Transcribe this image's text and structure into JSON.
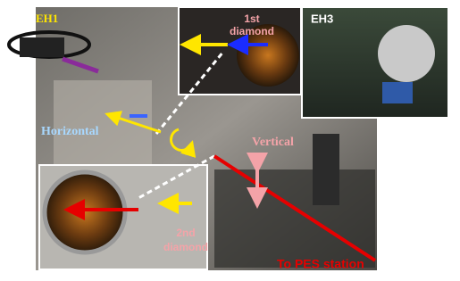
{
  "labels": {
    "eh1": "EH1",
    "first_diamond": [
      "1st",
      "diamond"
    ],
    "eh3": "EH3",
    "horizontal": "Horizontal",
    "vertical": "Vertical",
    "second_diamond": [
      "2nd",
      "diamond"
    ],
    "to_pes": "To PES station"
  }
}
